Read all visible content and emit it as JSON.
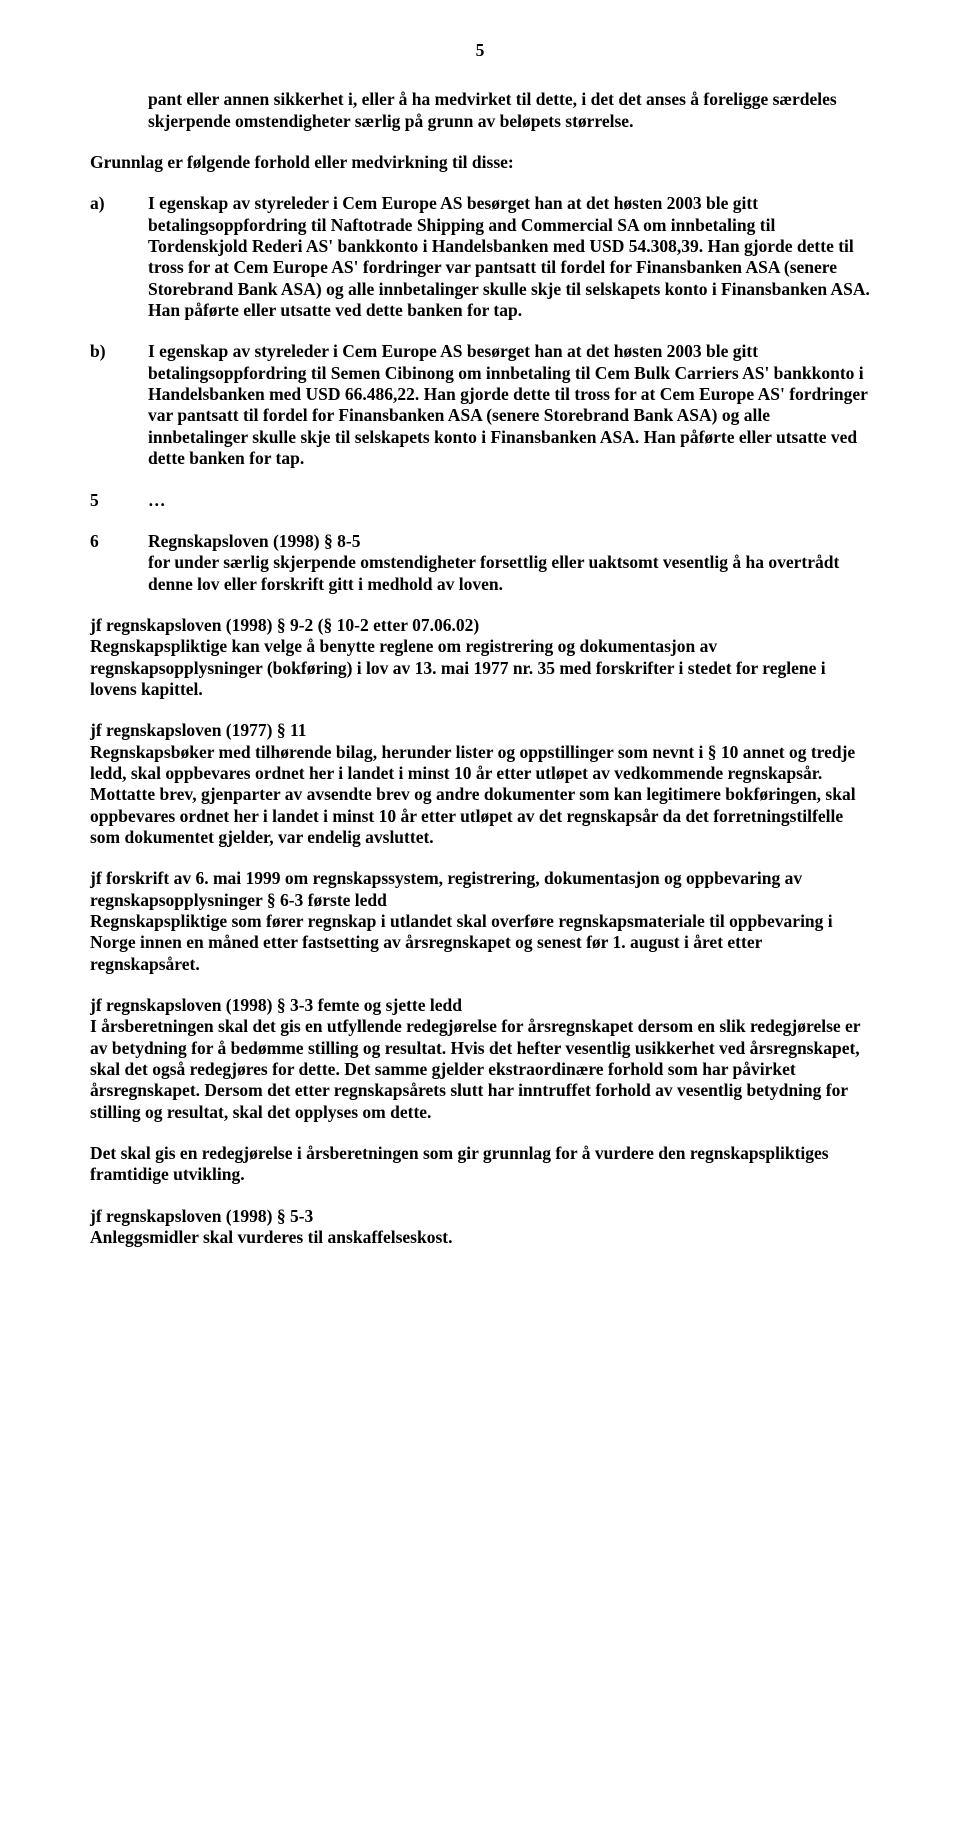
{
  "page_number": "5",
  "intro_paragraph": "pant eller annen sikkerhet i, eller å ha medvirket til dette, i det det anses å foreligge særdeles skjerpende omstendigheter særlig på grunn av beløpets størrelse.",
  "grunnlag_heading": "Grunnlag er følgende forhold eller medvirkning til disse:",
  "items": {
    "a": {
      "label": "a)",
      "text": "I egenskap av styreleder i Cem Europe AS besørget han at det høsten 2003 ble gitt betalingsoppfordring til Naftotrade Shipping and Commercial SA om innbetaling til Tordenskjold Rederi AS' bankkonto i Handelsbanken med USD 54.308,39. Han gjorde dette til tross for at Cem Europe AS' fordringer var pantsatt til fordel for Finansbanken ASA (senere Storebrand Bank ASA) og alle innbetalinger skulle skje til selskapets konto i Finansbanken ASA. Han påførte eller utsatte ved dette banken for tap."
    },
    "b": {
      "label": "b)",
      "text": "I egenskap av styreleder i Cem Europe AS besørget han at det høsten 2003 ble gitt betalingsoppfordring til Semen Cibinong om innbetaling til Cem Bulk Carriers AS' bankkonto i Handelsbanken med USD 66.486,22. Han gjorde dette til tross for at Cem Europe AS' fordringer var pantsatt til fordel for Finansbanken ASA (senere Storebrand Bank ASA) og alle innbetalinger skulle skje til selskapets konto i Finansbanken ASA. Han påførte eller utsatte ved dette banken for tap."
    }
  },
  "section5": {
    "label": "5",
    "text": "…"
  },
  "section6": {
    "label": "6",
    "title": "Regnskapsloven (1998) § 8-5",
    "body": "for under særlig skjerpende omstendigheter forsettlig eller uaktsomt vesentlig å ha overtrådt denne lov eller forskrift gitt i medhold av loven."
  },
  "paragraphs": [
    {
      "title": "jf regnskapsloven (1998) § 9-2 (§ 10-2 etter 07.06.02)",
      "body": "Regnskapspliktige kan velge å benytte reglene om registrering og dokumentasjon av regnskapsopplysninger (bokføring) i lov av 13. mai 1977 nr. 35 med forskrifter i stedet for reglene i lovens kapittel."
    },
    {
      "title": "jf regnskapsloven (1977) § 11",
      "body": "Regnskapsbøker med tilhørende bilag, herunder lister og oppstillinger som nevnt i § 10 annet og tredje ledd, skal oppbevares ordnet her i landet i minst 10 år etter utløpet av vedkommende regnskapsår. Mottatte brev, gjenparter av avsendte brev og andre dokumenter som kan legitimere bokføringen, skal oppbevares ordnet her i landet i minst 10 år etter utløpet av det regnskapsår da det forretningstilfelle som dokumentet gjelder, var endelig avsluttet."
    },
    {
      "title": "jf forskrift av 6. mai 1999 om regnskapssystem, registrering, dokumentasjon og oppbevaring av regnskapsopplysninger § 6-3 første ledd",
      "body": "Regnskapspliktige som fører regnskap i utlandet skal overføre regnskapsmateriale til oppbevaring i Norge innen en måned etter fastsetting av årsregnskapet og senest før 1. august i året etter regnskapsåret."
    },
    {
      "title": "jf regnskapsloven (1998) § 3-3 femte og sjette ledd",
      "body": "I årsberetningen skal det gis en utfyllende redegjørelse for årsregnskapet dersom en slik redegjørelse er av betydning for å bedømme stilling og resultat. Hvis det hefter vesentlig usikkerhet ved årsregnskapet, skal det også redegjøres for dette. Det samme gjelder ekstraordinære forhold som har påvirket årsregnskapet. Dersom det etter regnskapsårets slutt har inntruffet forhold av vesentlig betydning for stilling og resultat, skal det opplyses om dette."
    }
  ],
  "standalone_paragraph": "Det skal gis en redegjørelse i årsberetningen som gir grunnlag for å vurdere den regnskapspliktiges framtidige utvikling.",
  "final_section": {
    "title": "jf regnskapsloven (1998) § 5-3",
    "body": "Anleggsmidler skal vurderes til anskaffelseskost."
  }
}
